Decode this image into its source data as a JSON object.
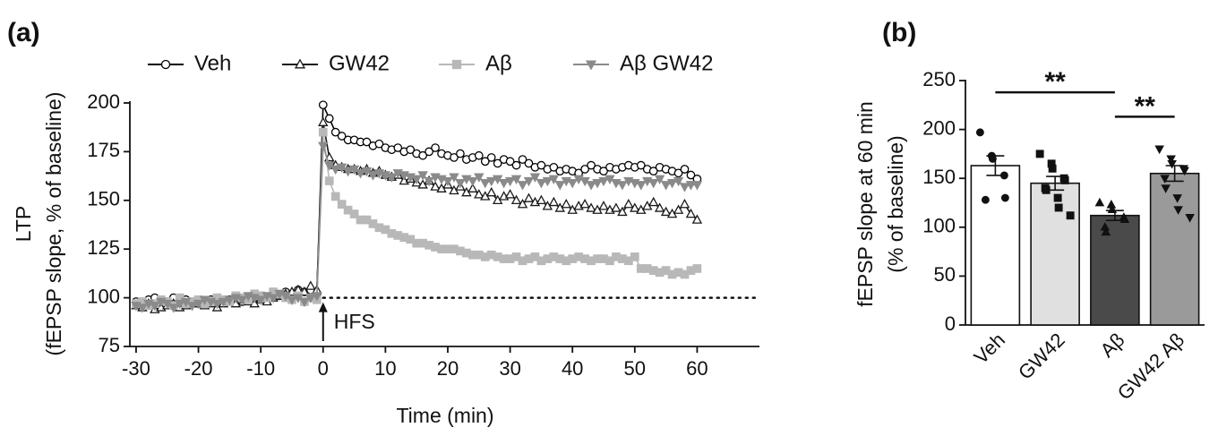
{
  "chart_data": [
    {
      "type": "line",
      "panel_label": "(a)",
      "xlabel": "Time (min)",
      "ylabel": [
        "LTP",
        "(fEPSP slope, % of baseline)"
      ],
      "xlim": [
        -31,
        70
      ],
      "ylim": [
        75,
        200
      ],
      "xticks": [
        -30,
        -20,
        -10,
        0,
        10,
        20,
        30,
        40,
        50,
        60
      ],
      "yticks": [
        75,
        100,
        125,
        150,
        175,
        200
      ],
      "legend": "top",
      "reference_line": 100,
      "annotation": {
        "text": "HFS",
        "x": 0
      },
      "x": [
        -30,
        -29,
        -28,
        -27,
        -26,
        -25,
        -24,
        -23,
        -22,
        -21,
        -20,
        -19,
        -18,
        -17,
        -16,
        -15,
        -14,
        -13,
        -12,
        -11,
        -10,
        -9,
        -8,
        -7,
        -6,
        -5,
        -4,
        -3,
        -2,
        -1,
        0,
        1,
        2,
        3,
        4,
        5,
        6,
        7,
        8,
        9,
        10,
        11,
        12,
        13,
        14,
        15,
        16,
        17,
        18,
        19,
        20,
        21,
        22,
        23,
        24,
        25,
        26,
        27,
        28,
        29,
        30,
        31,
        32,
        33,
        34,
        35,
        36,
        37,
        38,
        39,
        40,
        41,
        42,
        43,
        44,
        45,
        46,
        47,
        48,
        49,
        50,
        51,
        52,
        53,
        54,
        55,
        56,
        57,
        58,
        59,
        60
      ],
      "series": [
        {
          "name": "Veh",
          "color": "#000000",
          "marker": "circle",
          "marker_fill": "#ffffff",
          "values": [
            98,
            97,
            99,
            100,
            96,
            98,
            100,
            97,
            99,
            98,
            97,
            98,
            99,
            97,
            98,
            99,
            100,
            98,
            99,
            100,
            101,
            100,
            102,
            101,
            103,
            102,
            104,
            103,
            104,
            102,
            199,
            192,
            185,
            183,
            181,
            181,
            180,
            180,
            178,
            179,
            177,
            176,
            177,
            175,
            176,
            174,
            173,
            175,
            177,
            174,
            173,
            172,
            174,
            171,
            172,
            173,
            170,
            172,
            169,
            171,
            170,
            168,
            171,
            169,
            167,
            168,
            166,
            167,
            165,
            166,
            165,
            164,
            166,
            168,
            166,
            165,
            167,
            166,
            167,
            168,
            167,
            168,
            166,
            165,
            167,
            166,
            165,
            164,
            166,
            163,
            161
          ]
        },
        {
          "name": "GW42",
          "color": "#1a1a1a",
          "marker": "triangle",
          "marker_fill": "#ffffff",
          "values": [
            96,
            95,
            97,
            94,
            95,
            96,
            97,
            95,
            96,
            97,
            98,
            96,
            97,
            95,
            97,
            98,
            97,
            99,
            98,
            97,
            99,
            98,
            100,
            101,
            102,
            103,
            104,
            103,
            106,
            104,
            190,
            172,
            168,
            167,
            166,
            166,
            165,
            166,
            164,
            165,
            163,
            162,
            163,
            160,
            161,
            159,
            158,
            160,
            157,
            156,
            158,
            155,
            157,
            154,
            156,
            153,
            152,
            154,
            150,
            152,
            153,
            150,
            148,
            151,
            149,
            150,
            147,
            149,
            146,
            148,
            145,
            147,
            148,
            146,
            145,
            147,
            145,
            146,
            144,
            148,
            146,
            145,
            147,
            149,
            146,
            144,
            143,
            145,
            148,
            143,
            140
          ]
        },
        {
          "name": "Aβ",
          "color": "#b8b8b8",
          "marker": "square",
          "marker_fill": "#b8b8b8",
          "values": [
            97,
            98,
            96,
            97,
            99,
            98,
            96,
            100,
            97,
            98,
            99,
            97,
            98,
            100,
            99,
            98,
            101,
            100,
            99,
            102,
            101,
            100,
            103,
            102,
            100,
            99,
            101,
            98,
            100,
            99,
            185,
            160,
            152,
            148,
            145,
            143,
            140,
            140,
            138,
            136,
            135,
            133,
            132,
            131,
            130,
            128,
            128,
            127,
            126,
            125,
            125,
            125,
            124,
            123,
            122,
            122,
            121,
            122,
            121,
            120,
            120,
            121,
            119,
            120,
            121,
            119,
            120,
            121,
            120,
            119,
            120,
            121,
            120,
            119,
            120,
            120,
            119,
            121,
            120,
            119,
            121,
            115,
            115,
            114,
            113,
            114,
            112,
            113,
            112,
            114,
            115
          ]
        },
        {
          "name": "Aβ GW42",
          "color": "#8a8a8a",
          "marker": "triangle-down",
          "marker_fill": "#8a8a8a",
          "values": [
            96,
            95,
            97,
            96,
            98,
            97,
            95,
            97,
            98,
            96,
            97,
            99,
            98,
            97,
            98,
            99,
            100,
            99,
            101,
            100,
            99,
            101,
            100,
            102,
            101,
            99,
            100,
            98,
            100,
            101,
            178,
            168,
            166,
            167,
            165,
            166,
            164,
            165,
            163,
            164,
            163,
            162,
            164,
            163,
            162,
            161,
            163,
            160,
            162,
            161,
            160,
            162,
            159,
            161,
            160,
            162,
            159,
            160,
            161,
            159,
            160,
            161,
            158,
            160,
            162,
            159,
            160,
            161,
            158,
            160,
            159,
            161,
            160,
            158,
            159,
            160,
            161,
            159,
            158,
            160,
            159,
            158,
            160,
            159,
            161,
            158,
            159,
            160,
            157,
            158,
            158
          ]
        }
      ]
    },
    {
      "type": "bar",
      "panel_label": "(b)",
      "ylabel": [
        "fEPSP slope at 60 min",
        "(% of baseline)"
      ],
      "categories": [
        "Veh",
        "GW42",
        "Aβ",
        "GW42 Aβ"
      ],
      "values": [
        163,
        145,
        112,
        155
      ],
      "errors": [
        10,
        7,
        5,
        8
      ],
      "colors": [
        "#ffffff",
        "#e0e0e0",
        "#4a4a4a",
        "#9a9a9a"
      ],
      "markers": [
        "circle",
        "square",
        "triangle",
        "triangle-down"
      ],
      "points": [
        [
          197,
          173,
          170,
          153,
          130,
          128
        ],
        [
          175,
          165,
          160,
          150,
          148,
          140,
          138,
          130,
          120,
          112
        ],
        [
          125,
          123,
          118,
          110,
          108,
          100,
          95
        ],
        [
          180,
          170,
          165,
          160,
          158,
          150,
          140,
          130,
          118,
          110
        ]
      ],
      "ylim": [
        0,
        250
      ],
      "yticks": [
        0,
        50,
        100,
        150,
        200,
        250
      ],
      "significance": [
        {
          "label": "**",
          "between": [
            "Veh",
            "Aβ"
          ],
          "y": 238
        },
        {
          "label": "**",
          "between": [
            "Aβ",
            "GW42 Aβ"
          ],
          "y": 213
        }
      ]
    }
  ]
}
